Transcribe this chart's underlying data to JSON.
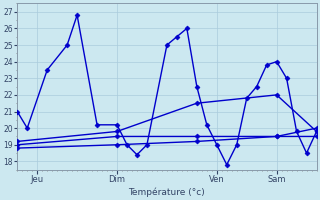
{
  "background_color": "#cce8f0",
  "grid_major_color": "#aaccdd",
  "grid_minor_color": "#bbdde8",
  "line_color": "#0000cc",
  "xlabel": "Température (°c)",
  "ylim": [
    17.5,
    27.5
  ],
  "yticks": [
    18,
    19,
    20,
    21,
    22,
    23,
    24,
    25,
    26,
    27
  ],
  "xlim": [
    0,
    30
  ],
  "day_ticks": [
    2,
    10,
    20,
    26
  ],
  "day_labels": [
    "Jeu",
    "Dim",
    "Ven",
    "Sam"
  ],
  "series1_x": [
    0,
    1,
    3,
    5,
    6,
    8,
    10,
    11,
    12,
    13,
    15,
    16,
    17,
    18,
    19,
    20,
    21,
    22,
    23,
    24,
    25,
    26,
    27,
    28,
    29,
    30
  ],
  "series1_y": [
    21,
    20,
    23.5,
    25,
    26.8,
    20.2,
    20.2,
    19.0,
    18.4,
    19.0,
    25.0,
    25.5,
    26.0,
    22.5,
    20.2,
    19.0,
    17.8,
    19.0,
    21.8,
    22.5,
    23.8,
    24.0,
    23.0,
    19.8,
    18.5,
    19.8
  ],
  "series2_x": [
    0,
    10,
    18,
    26,
    30
  ],
  "series2_y": [
    19.0,
    19.5,
    19.5,
    19.5,
    19.5
  ],
  "series3_x": [
    0,
    10,
    18,
    26,
    30
  ],
  "series3_y": [
    18.8,
    19.0,
    19.2,
    19.5,
    20.0
  ],
  "series4_x": [
    0,
    10,
    18,
    26,
    30
  ],
  "series4_y": [
    19.2,
    19.8,
    21.5,
    22.0,
    19.8
  ]
}
